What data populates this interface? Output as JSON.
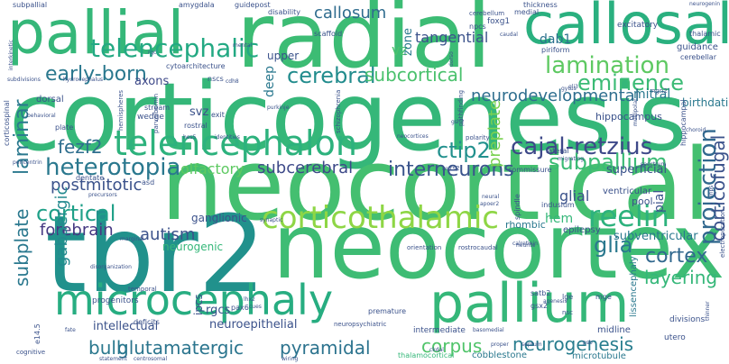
{
  "palette": {
    "dark": "#3b528b",
    "teal": "#21918c",
    "green": "#35b779",
    "lime": "#90d743",
    "yellow": "#d8e219"
  },
  "words": [
    {
      "id": "corticogenesis",
      "text": "corticogenesis",
      "color": "#35b779"
    },
    {
      "id": "neocortical",
      "text": "neocortical",
      "color": "#44bf70"
    },
    {
      "id": "radial",
      "text": "radial",
      "color": "#3cbc74"
    },
    {
      "id": "tbr2",
      "text": "tbr2",
      "color": "#21918c"
    },
    {
      "id": "neocortex",
      "text": "neocortex",
      "color": "#3ebc74"
    },
    {
      "id": "microcephaly",
      "text": "microcephaly",
      "color": "#27ad81"
    },
    {
      "id": "pallium",
      "text": "pallium",
      "color": "#35b779"
    },
    {
      "id": "pallial",
      "text": "pallial",
      "color": "#35b779"
    },
    {
      "id": "callosal",
      "text": "callosal",
      "color": "#2ab07f"
    },
    {
      "id": "telencephalon",
      "text": "telencephalon",
      "color": "#2db27d"
    },
    {
      "id": "corticothalamic",
      "text": "corticothalamic",
      "color": "#8ed645"
    },
    {
      "id": "telencephalic",
      "text": "telencephalic",
      "color": "#23a983"
    },
    {
      "id": "lamination",
      "text": "lamination",
      "color": "#5ec962"
    },
    {
      "id": "eminence",
      "text": "eminence",
      "color": "#3bbb75"
    },
    {
      "id": "early-born",
      "text": "early-born",
      "color": "#2a788e"
    },
    {
      "id": "cerebral",
      "text": "cerebral",
      "color": "#228c8d"
    },
    {
      "id": "subcortical",
      "text": "subcortical",
      "color": "#4ac16d"
    },
    {
      "id": "neurodevelopmental",
      "text": "neurodevelopmental",
      "color": "#2e6e8e"
    },
    {
      "id": "callosum",
      "text": "callosum",
      "color": "#2f6c8e"
    },
    {
      "id": "heterotopia",
      "text": "heterotopia",
      "color": "#2a788e"
    },
    {
      "id": "cortical",
      "text": "cortical",
      "color": "#1fa088"
    },
    {
      "id": "cajal-retzius",
      "text": "cajal-retzius",
      "color": "#3e4989"
    },
    {
      "id": "subpallium",
      "text": "subpallium",
      "color": "#3bbb75"
    },
    {
      "id": "ctip2",
      "text": "ctip2",
      "color": "#21908d"
    },
    {
      "id": "fezf2",
      "text": "fezf2",
      "color": "#2e6e8e"
    },
    {
      "id": "postmitotic",
      "text": "postmitotic",
      "color": "#3b528b"
    },
    {
      "id": "forebrain",
      "text": "forebrain",
      "color": "#453882"
    },
    {
      "id": "reelin",
      "text": "reelin",
      "color": "#2db27d"
    },
    {
      "id": "glia",
      "text": "glia",
      "color": "#2a788e"
    },
    {
      "id": "cortex",
      "text": "cortex",
      "color": "#31688e"
    },
    {
      "id": "layering",
      "text": "layering",
      "color": "#35b779"
    },
    {
      "id": "neurogenesis",
      "text": "neurogenesis",
      "color": "#287d8e"
    },
    {
      "id": "pyramidal",
      "text": "pyramidal",
      "color": "#2c738e"
    },
    {
      "id": "glutamatergic",
      "text": "glutamatergic",
      "color": "#2b758e"
    },
    {
      "id": "bulb",
      "text": "bulb",
      "color": "#2a788e"
    },
    {
      "id": "corpus",
      "text": "corpus",
      "color": "#50c46a"
    },
    {
      "id": "interneurons",
      "text": "interneurons",
      "color": "#3a548c"
    },
    {
      "id": "subcerebral",
      "text": "subcerebral",
      "color": "#3e4a89"
    },
    {
      "id": "olfactory",
      "text": "olfactory",
      "color": "#5ec962"
    },
    {
      "id": "autism",
      "text": "autism",
      "color": "#3b528b"
    },
    {
      "id": "laminar",
      "text": "laminar",
      "color": "#2a788e"
    },
    {
      "id": "subplate",
      "text": "subplate",
      "color": "#2a788e"
    },
    {
      "id": "gabaergic",
      "text": "gabaergic",
      "color": "#23898e"
    },
    {
      "id": "projection",
      "text": "projection",
      "color": "#31688e"
    },
    {
      "id": "corticofugal",
      "text": "corticofugal",
      "color": "#3b528b"
    },
    {
      "id": "preplate",
      "text": "preplate",
      "color": "#7ad151"
    },
    {
      "id": "tangential",
      "text": "tangential",
      "color": "#3b528b"
    },
    {
      "id": "vz",
      "text": "vz",
      "color": "#4ac16d"
    },
    {
      "id": "dab1",
      "text": "dab1",
      "color": "#2c728e"
    },
    {
      "id": "mitral",
      "text": "mitral",
      "color": "#2a788e"
    },
    {
      "id": "birthdating",
      "text": "birthdating",
      "color": "#2a788e"
    },
    {
      "id": "upper",
      "text": "upper",
      "color": "#3b528b"
    },
    {
      "id": "deep",
      "text": "deep",
      "color": "#2a788e"
    },
    {
      "id": "svz",
      "text": "svz",
      "color": "#3b528b"
    },
    {
      "id": "axons",
      "text": "axons",
      "color": "#3e4989"
    },
    {
      "id": "superficial",
      "text": "superficial",
      "color": "#3b528b"
    },
    {
      "id": "glial",
      "text": "glial",
      "color": "#3b528b"
    },
    {
      "id": "hem",
      "text": "hem",
      "color": "#35b779"
    },
    {
      "id": "pial",
      "text": "pial",
      "color": "#3b528b"
    },
    {
      "id": "ganglionic",
      "text": "ganglionic",
      "color": "#3b528b"
    },
    {
      "id": "neurogenic",
      "text": "neurogenic",
      "color": "#35b779"
    },
    {
      "id": "subventricular",
      "text": "subventricular",
      "color": "#2a788e"
    },
    {
      "id": "neuroepithelial",
      "text": "neuroepithelial",
      "color": "#3b528b"
    },
    {
      "id": "intellectual",
      "text": "intellectual",
      "color": "#3b528b"
    },
    {
      "id": "rgcs",
      "text": "rgcs",
      "color": "#3b528b"
    },
    {
      "id": "ipcs",
      "text": "ipcs",
      "color": "#3b528b"
    },
    {
      "id": "zone",
      "text": "zone",
      "color": "#2a788e"
    },
    {
      "id": "hippocampus",
      "text": "hippocampus",
      "color": "#3b528b"
    },
    {
      "id": "ventricular",
      "text": "ventricular",
      "color": "#3b528b"
    },
    {
      "id": "pool",
      "text": "pool",
      "color": "#3b528b"
    },
    {
      "id": "rhombic",
      "text": "rhombic",
      "color": "#2a788e"
    },
    {
      "id": "epilepsy",
      "text": "epilepsy",
      "color": "#3b528b"
    },
    {
      "id": "lissencephaly",
      "text": "lissencephaly",
      "color": "#2a788e"
    },
    {
      "id": "microtubule",
      "text": "microtubule",
      "color": "#2a788e"
    },
    {
      "id": "cobblestone",
      "text": "cobblestone",
      "color": "#2a788e"
    },
    {
      "id": "thalamocortical",
      "text": "thalamocortical",
      "color": "#35b779"
    },
    {
      "id": "intermediate",
      "text": "intermediate",
      "color": "#3b528b"
    },
    {
      "id": "midline",
      "text": "midline",
      "color": "#3b528b"
    },
    {
      "id": "divisions",
      "text": "divisions",
      "color": "#3b528b"
    },
    {
      "id": "utero",
      "text": "utero",
      "color": "#3b528b"
    },
    {
      "id": "guidance",
      "text": "guidance",
      "color": "#3b528b"
    },
    {
      "id": "cerebellar",
      "text": "cerebellar",
      "color": "#3b528b"
    },
    {
      "id": "excitatory",
      "text": "excitatory",
      "color": "#3b528b"
    },
    {
      "id": "foxg1",
      "text": "foxg1",
      "color": "#3b528b"
    },
    {
      "id": "scaffold",
      "text": "scaffold",
      "color": "#3b528b"
    },
    {
      "id": "stream",
      "text": "stream",
      "color": "#3b528b"
    },
    {
      "id": "wedge",
      "text": "wedge",
      "color": "#3b528b"
    },
    {
      "id": "rostral",
      "text": "rostral",
      "color": "#3b528b"
    },
    {
      "id": "exit",
      "text": "exit",
      "color": "#3b528b"
    },
    {
      "id": "cytoarchitecture",
      "text": "cytoarchitecture",
      "color": "#3b528b"
    },
    {
      "id": "nscs",
      "text": "nscs",
      "color": "#3b528b"
    },
    {
      "id": "dorsal",
      "text": "dorsal",
      "color": "#3b528b"
    },
    {
      "id": "plate",
      "text": "plate",
      "color": "#3b528b"
    },
    {
      "id": "subdivisions",
      "text": "subdivisions",
      "color": "#3b528b"
    },
    {
      "id": "hydrocephalus",
      "text": "hydrocephalus",
      "color": "#3b528b"
    },
    {
      "id": "behavioral",
      "text": "behavioral",
      "color": "#3b528b"
    },
    {
      "id": "corticospinal",
      "text": "corticospinal",
      "color": "#3b528b"
    },
    {
      "id": "interkinetic",
      "text": "interkinetic",
      "color": "#3b528b"
    },
    {
      "id": "subpallial",
      "text": "subpallial",
      "color": "#3b528b"
    },
    {
      "id": "amygdala",
      "text": "amygdala",
      "color": "#3b528b"
    },
    {
      "id": "guidepost",
      "text": "guidepost",
      "color": "#3b528b"
    },
    {
      "id": "disability",
      "text": "disability",
      "color": "#3b528b"
    },
    {
      "id": "thickness",
      "text": "thickness",
      "color": "#3b528b"
    },
    {
      "id": "neurogenin",
      "text": "neurogenin",
      "color": "#3b528b"
    },
    {
      "id": "thalamic",
      "text": "thalamic",
      "color": "#3b528b"
    },
    {
      "id": "medial",
      "text": "medial",
      "color": "#3b528b"
    },
    {
      "id": "cerebellum",
      "text": "cerebellum",
      "color": "#3b528b"
    },
    {
      "id": "npcs",
      "text": "npcs",
      "color": "#3b528b"
    },
    {
      "id": "caudal",
      "text": "caudal",
      "color": "#3b528b"
    },
    {
      "id": "piriform",
      "text": "piriform",
      "color": "#3b528b"
    },
    {
      "id": "mental",
      "text": "mental",
      "color": "#3b528b"
    },
    {
      "id": "hes5",
      "text": "hes5",
      "color": "#3b528b"
    },
    {
      "id": "identities",
      "text": "identities",
      "color": "#3b528b"
    },
    {
      "id": "neocortices",
      "text": "neocortices",
      "color": "#3b528b"
    },
    {
      "id": "gsh2",
      "text": "gsh2",
      "color": "#3b528b"
    },
    {
      "id": "choroid",
      "text": "choroid",
      "color": "#3b528b"
    },
    {
      "id": "lateral",
      "text": "lateral",
      "color": "#3b528b"
    },
    {
      "id": "migrating",
      "text": "migrating",
      "color": "#3b528b"
    },
    {
      "id": "commissure",
      "text": "commissure",
      "color": "#3b528b"
    },
    {
      "id": "auts2",
      "text": "auts2",
      "color": "#3b528b"
    },
    {
      "id": "spectrum",
      "text": "spectrum",
      "color": "#3b528b"
    },
    {
      "id": "indusium",
      "text": "indusium",
      "color": "#3b528b"
    },
    {
      "id": "hippocampal",
      "text": "hippocampal",
      "color": "#3b528b"
    },
    {
      "id": "neural",
      "text": "neural",
      "color": "#3b528b"
    },
    {
      "id": "apoer2",
      "text": "apoer2",
      "color": "#3b528b"
    },
    {
      "id": "spindle",
      "text": "spindle",
      "color": "#3b528b"
    },
    {
      "id": "calretinin",
      "text": "calretinin",
      "color": "#3b528b"
    },
    {
      "id": "orientation",
      "text": "orientation",
      "color": "#3b528b"
    },
    {
      "id": "rostrocaudal",
      "text": "rostrocaudal",
      "color": "#3b528b"
    },
    {
      "id": "synaptic",
      "text": "synaptic",
      "color": "#3b528b"
    },
    {
      "id": "marginal",
      "text": "marginal",
      "color": "#3b528b"
    },
    {
      "id": "disorganization",
      "text": "disorganization",
      "color": "#3b528b"
    },
    {
      "id": "dentate",
      "text": "dentate",
      "color": "#3b528b"
    },
    {
      "id": "asd",
      "text": "asd",
      "color": "#3b528b"
    },
    {
      "id": "precursors",
      "text": "precursors",
      "color": "#3b528b"
    },
    {
      "id": "progenitors",
      "text": "progenitors",
      "color": "#3b528b"
    },
    {
      "id": "temporal",
      "text": "temporal",
      "color": "#3b528b"
    },
    {
      "id": "deficits",
      "text": "deficits",
      "color": "#3b528b"
    },
    {
      "id": "lhx2",
      "text": "lhx2",
      "color": "#3b528b"
    },
    {
      "id": "pax6",
      "text": "pax6",
      "color": "#3b528b"
    },
    {
      "id": "cues",
      "text": "cues",
      "color": "#3b528b"
    },
    {
      "id": "premature",
      "text": "premature",
      "color": "#3b528b"
    },
    {
      "id": "agenesis",
      "text": "agenesis",
      "color": "#3b528b"
    },
    {
      "id": "satb2",
      "text": "satb2",
      "color": "#3b528b"
    },
    {
      "id": "gsx2",
      "text": "gsx2",
      "color": "#3b528b"
    },
    {
      "id": "lge",
      "text": "lge",
      "color": "#3b528b"
    },
    {
      "id": "mge",
      "text": "mge",
      "color": "#3b528b"
    },
    {
      "id": "nsc",
      "text": "nsc",
      "color": "#3b528b"
    },
    {
      "id": "psb",
      "text": "psb",
      "color": "#3b528b"
    },
    {
      "id": "fate",
      "text": "fate",
      "color": "#3b528b"
    },
    {
      "id": "neuropsychiatric",
      "text": "neuropsychiatric",
      "color": "#3b528b"
    },
    {
      "id": "basomedial",
      "text": "basomedial",
      "color": "#3b528b"
    },
    {
      "id": "cognitive",
      "text": "cognitive",
      "color": "#3b528b"
    },
    {
      "id": "statement",
      "text": "statement",
      "color": "#3b528b"
    },
    {
      "id": "centrosomal",
      "text": "centrosomal",
      "color": "#3b528b"
    },
    {
      "id": "wiring",
      "text": "wiring",
      "color": "#3b528b"
    },
    {
      "id": "proper",
      "text": "proper",
      "color": "#3b528b"
    },
    {
      "id": "septum",
      "text": "septum",
      "color": "#3b528b"
    },
    {
      "id": "e14.5",
      "text": "e14.5",
      "color": "#3b528b"
    },
    {
      "id": "gyrus",
      "text": "gyrus",
      "color": "#3b528b"
    },
    {
      "id": "purkinje",
      "text": "purkinje",
      "color": "#3b528b"
    },
    {
      "id": "parvalbumin",
      "text": "parvalbumin",
      "color": "#3b528b"
    },
    {
      "id": "hemispheres",
      "text": "hemispheres",
      "color": "#3b528b"
    },
    {
      "id": "schizophrenia",
      "text": "schizophrenia",
      "color": "#3b528b"
    },
    {
      "id": "polarity",
      "text": "polarity",
      "color": "#3b528b"
    },
    {
      "id": "pathfinding",
      "text": "pathfinding",
      "color": "#3b528b"
    },
    {
      "id": "dorso",
      "text": "dorso",
      "color": "#3b528b"
    },
    {
      "id": "multipolar",
      "text": "multipolar",
      "color": "#3b528b"
    },
    {
      "id": "ngn2",
      "text": "ngn2",
      "color": "#3b528b"
    },
    {
      "id": "gli3",
      "text": "gli3",
      "color": "#3b528b"
    },
    {
      "id": "cdh8",
      "text": "cdh8",
      "color": "#3b528b"
    },
    {
      "id": "rgc",
      "text": "rgc",
      "color": "#3b528b"
    },
    {
      "id": "pericentrin",
      "text": "pericentrin",
      "color": "#3b528b"
    },
    {
      "id": "neurite",
      "text": "neurite",
      "color": "#3b528b"
    },
    {
      "id": "ckdal",
      "text": "ckdal",
      "color": "#3b528b"
    },
    {
      "id": "electroporation",
      "text": "electroporation",
      "color": "#3b528b"
    },
    {
      "id": "thinner",
      "text": "thinner",
      "color": "#3b528b"
    },
    {
      "id": "inps",
      "text": "inps",
      "color": "#3b528b"
    }
  ]
}
